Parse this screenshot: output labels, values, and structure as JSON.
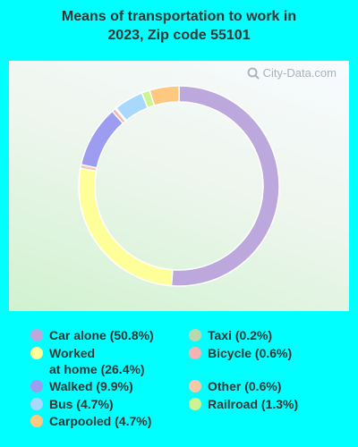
{
  "chart_data": {
    "type": "pie",
    "title_lines": [
      "Means of transportation to work in",
      "2023, Zip code 55101"
    ],
    "watermark": "City-Data.com",
    "slices": [
      {
        "label": "Car alone (50.8%)",
        "value": 50.8,
        "color": "#bca8dc"
      },
      {
        "label": "Worked\nat home (26.4%)",
        "value": 26.4,
        "color": "#ffff99"
      },
      {
        "label": "Other (0.6%)",
        "value": 0.6,
        "color": "#f7c8a8"
      },
      {
        "label": "Walked (9.9%)",
        "value": 9.9,
        "color": "#9c9cf0"
      },
      {
        "label": "Bicycle (0.6%)",
        "value": 0.6,
        "color": "#f6b2b2"
      },
      {
        "label": "Taxi (0.2%)",
        "value": 0.2,
        "color": "#b8d8b0"
      },
      {
        "label": "Bus (4.7%)",
        "value": 4.7,
        "color": "#a8d8fc"
      },
      {
        "label": "Railroad (1.3%)",
        "value": 1.3,
        "color": "#ccf590"
      },
      {
        "label": "Carpooled (4.7%)",
        "value": 4.7,
        "color": "#ffc880"
      }
    ],
    "legend_order": [
      0,
      5,
      1,
      4,
      3,
      2,
      6,
      7,
      8
    ]
  }
}
